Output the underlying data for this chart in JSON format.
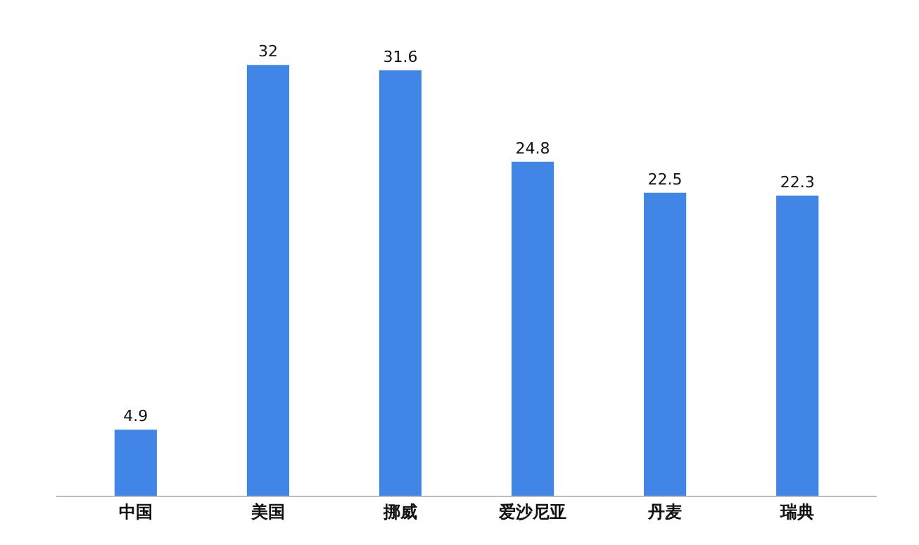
{
  "chart_data": {
    "type": "bar",
    "categories": [
      "中国",
      "美国",
      "挪威",
      "爱沙尼亚",
      "丹麦",
      "瑞典"
    ],
    "values": [
      4.9,
      32,
      31.6,
      24.8,
      22.5,
      22.3
    ],
    "color": "#4185e6",
    "data_labels": true,
    "grid": false,
    "legend": false
  }
}
